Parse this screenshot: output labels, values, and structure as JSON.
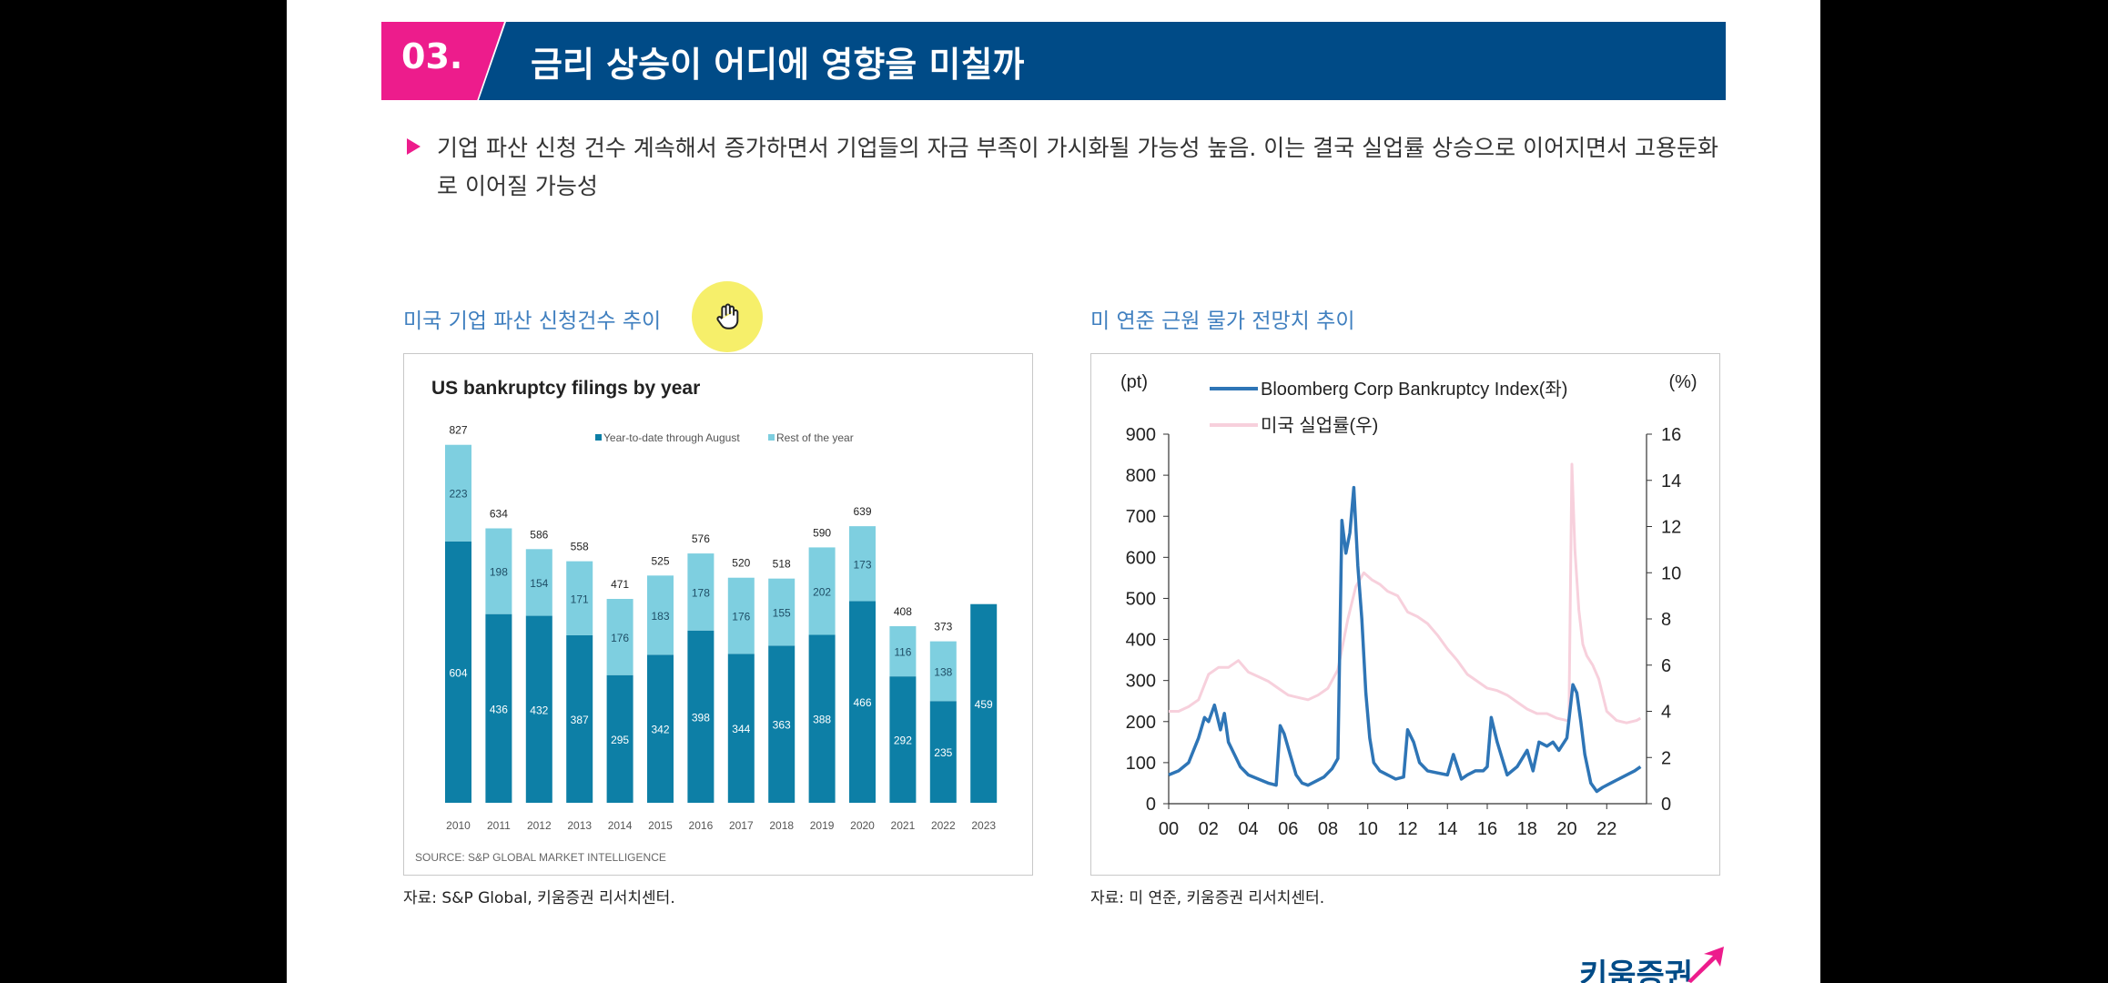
{
  "header": {
    "number": "03.",
    "title": "금리 상승이 어디에 영향을 미칠까"
  },
  "bullet": {
    "text": "기업 파산 신청 건수 계속해서 증가하면서 기업들의 자금 부족이 가시화될 가능성 높음. 이는 결국 실업률 상승으로 이어지면서 고용둔화로 이어질 가능성"
  },
  "left_panel": {
    "subtitle": "미국 기업 파산 신청건수 추이",
    "source": "자료: S&P Global, 키움증권 리서치센터."
  },
  "right_panel": {
    "subtitle": "미 연준 근원 물가 전망치 추이",
    "source": "자료: 미 연준, 키움증권 리서치센터."
  },
  "brand": {
    "text": "키움증권"
  },
  "colors": {
    "pink": "#ed1c8c",
    "navy": "#004b87",
    "bar_dark": "#0d7fa6",
    "bar_light": "#7ecfe0",
    "line_blue": "#2e75b6",
    "line_pink": "#f7d0dc"
  },
  "icons": {
    "cursor": "hand-cursor-icon",
    "brand": "arrow-up-right-icon"
  },
  "chart_data": [
    {
      "type": "bar",
      "stacked": true,
      "title": "US bankruptcy filings by year",
      "note": "SOURCE: S&P GLOBAL MARKET INTELLIGENCE",
      "categories": [
        "2010",
        "2011",
        "2012",
        "2013",
        "2014",
        "2015",
        "2016",
        "2017",
        "2018",
        "2019",
        "2020",
        "2021",
        "2022",
        "2023"
      ],
      "totals": [
        827,
        634,
        586,
        558,
        471,
        525,
        576,
        520,
        518,
        590,
        639,
        408,
        373,
        null
      ],
      "series": [
        {
          "name": "Year-to-date through August",
          "color": "#0d7fa6",
          "values": [
            604,
            436,
            432,
            387,
            295,
            342,
            398,
            344,
            363,
            388,
            466,
            292,
            235,
            459
          ]
        },
        {
          "name": "Rest of the year",
          "color": "#7ecfe0",
          "values": [
            223,
            198,
            154,
            171,
            176,
            183,
            178,
            176,
            155,
            202,
            173,
            116,
            138,
            null
          ]
        }
      ],
      "legend": "top",
      "ylim": [
        0,
        900
      ]
    },
    {
      "type": "line",
      "ylabel_left": "(pt)",
      "ylabel_right": "(%)",
      "x_ticks": [
        "00",
        "02",
        "04",
        "06",
        "08",
        "10",
        "12",
        "14",
        "16",
        "18",
        "20",
        "22"
      ],
      "xlim": [
        2000,
        2024
      ],
      "ylim_left": [
        0,
        900
      ],
      "y_ticks_left": [
        "0",
        "100",
        "200",
        "300",
        "400",
        "500",
        "600",
        "700",
        "800",
        "900"
      ],
      "ylim_right": [
        0,
        16
      ],
      "y_ticks_right": [
        "0",
        "2",
        "4",
        "6",
        "8",
        "10",
        "12",
        "14",
        "16"
      ],
      "legend": "top-left",
      "series": [
        {
          "name": "Bloomberg Corp Bankruptcy Index(좌)",
          "axis": "left",
          "color": "#2e75b6",
          "x": [
            2000.0,
            2000.5,
            2001.0,
            2001.5,
            2001.8,
            2002.0,
            2002.3,
            2002.6,
            2002.8,
            2003.0,
            2003.3,
            2003.6,
            2004.0,
            2004.5,
            2005.0,
            2005.4,
            2005.6,
            2005.8,
            2006.1,
            2006.4,
            2006.7,
            2007.0,
            2007.4,
            2007.8,
            2008.2,
            2008.5,
            2008.7,
            2008.9,
            2009.1,
            2009.3,
            2009.5,
            2009.7,
            2009.9,
            2010.1,
            2010.3,
            2010.6,
            2011.0,
            2011.4,
            2011.8,
            2012.0,
            2012.3,
            2012.6,
            2013.0,
            2013.5,
            2014.0,
            2014.3,
            2014.7,
            2015.0,
            2015.4,
            2015.8,
            2016.0,
            2016.2,
            2016.5,
            2017.0,
            2017.5,
            2018.0,
            2018.3,
            2018.6,
            2019.0,
            2019.3,
            2019.6,
            2020.0,
            2020.3,
            2020.5,
            2020.7,
            2020.9,
            2021.2,
            2021.5,
            2021.8,
            2022.2,
            2022.6,
            2023.0,
            2023.4,
            2023.7
          ],
          "y": [
            70,
            80,
            100,
            160,
            210,
            200,
            240,
            180,
            220,
            150,
            120,
            90,
            70,
            60,
            50,
            45,
            190,
            170,
            120,
            70,
            50,
            45,
            55,
            65,
            85,
            110,
            690,
            610,
            660,
            770,
            580,
            450,
            270,
            160,
            100,
            80,
            70,
            60,
            65,
            180,
            150,
            100,
            80,
            75,
            70,
            120,
            60,
            70,
            80,
            80,
            90,
            210,
            150,
            70,
            90,
            130,
            80,
            150,
            140,
            150,
            130,
            160,
            290,
            270,
            200,
            120,
            50,
            30,
            40,
            50,
            60,
            70,
            80,
            90
          ]
        },
        {
          "name": "미국 실업률(우)",
          "axis": "right",
          "color": "#f7d0dc",
          "x": [
            2000.0,
            2000.5,
            2001.0,
            2001.5,
            2002.0,
            2002.5,
            2003.0,
            2003.5,
            2004.0,
            2004.5,
            2005.0,
            2005.5,
            2006.0,
            2006.5,
            2007.0,
            2007.5,
            2008.0,
            2008.5,
            2009.0,
            2009.4,
            2009.8,
            2010.2,
            2010.6,
            2011.0,
            2011.5,
            2012.0,
            2012.5,
            2013.0,
            2013.5,
            2014.0,
            2014.5,
            2015.0,
            2015.5,
            2016.0,
            2016.5,
            2017.0,
            2017.5,
            2018.0,
            2018.5,
            2019.0,
            2019.5,
            2020.0,
            2020.1,
            2020.25,
            2020.4,
            2020.6,
            2020.8,
            2021.0,
            2021.3,
            2021.6,
            2022.0,
            2022.5,
            2023.0,
            2023.5,
            2023.7
          ],
          "y": [
            4.0,
            4.0,
            4.2,
            4.5,
            5.6,
            5.9,
            5.9,
            6.2,
            5.7,
            5.5,
            5.3,
            5.0,
            4.7,
            4.6,
            4.5,
            4.7,
            5.0,
            5.8,
            8.0,
            9.4,
            10.0,
            9.7,
            9.5,
            9.2,
            9.0,
            8.3,
            8.1,
            7.8,
            7.3,
            6.7,
            6.2,
            5.6,
            5.3,
            5.0,
            4.9,
            4.7,
            4.4,
            4.1,
            3.9,
            3.9,
            3.7,
            3.6,
            3.6,
            14.7,
            11.0,
            8.4,
            6.9,
            6.4,
            6.0,
            5.4,
            4.0,
            3.6,
            3.5,
            3.6,
            3.7
          ]
        }
      ]
    }
  ]
}
